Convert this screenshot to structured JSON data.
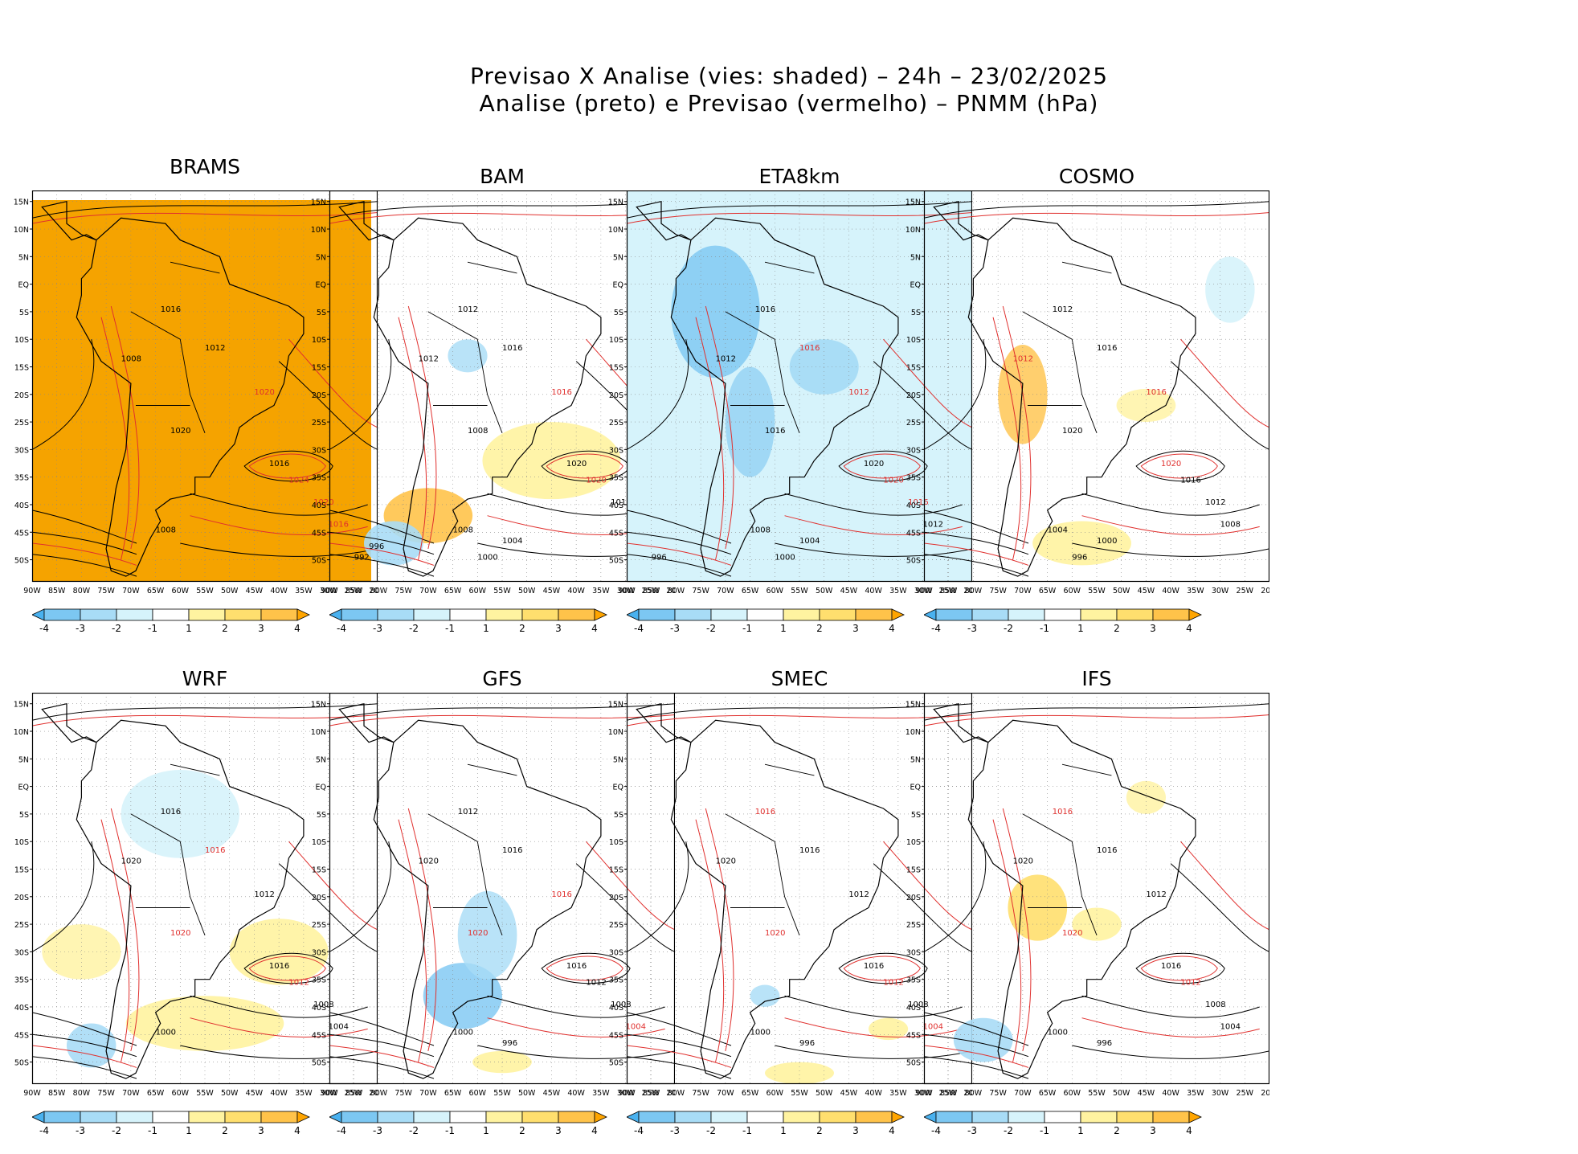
{
  "title_line1": "Previsao X Analise (vies: shaded) – 24h – 23/02/2025",
  "title_line2": "Analise (preto) e Previsao (vermelho) – PNMM (hPa)",
  "lat_labels": [
    "15N",
    "10N",
    "5N",
    "EQ",
    "5S",
    "10S",
    "15S",
    "20S",
    "25S",
    "30S",
    "35S",
    "40S",
    "45S",
    "50S"
  ],
  "lon_labels": [
    "90W",
    "85W",
    "80W",
    "75W",
    "70W",
    "65W",
    "60W",
    "55W",
    "50W",
    "45W",
    "40W",
    "35W",
    "30W",
    "25W",
    "20W"
  ],
  "colorbar": {
    "labels": [
      "-4",
      "-3",
      "-2",
      "-1",
      "1",
      "2",
      "3",
      "4"
    ],
    "colors": [
      "#49b1ef",
      "#7cc7f2",
      "#a8dcf6",
      "#d6f3fb",
      "#ffffff",
      "#fff3a0",
      "#ffdf6e",
      "#ffc34a",
      "#ffa500"
    ]
  },
  "contour_colors": {
    "analysis": "#000000",
    "forecast": "#e0302e"
  },
  "panels": [
    {
      "name": "BRAMS",
      "bias_fill": "#f5a300",
      "labels": [
        {
          "t": "1016",
          "c": "k"
        },
        {
          "t": "1012",
          "c": "k"
        },
        {
          "t": "1020",
          "c": "r"
        },
        {
          "t": "1008",
          "c": "k"
        },
        {
          "t": "1020",
          "c": "k"
        },
        {
          "t": "1016",
          "c": "k"
        },
        {
          "t": "1024",
          "c": "r"
        },
        {
          "t": "1020",
          "c": "r"
        },
        {
          "t": "1016",
          "c": "r"
        },
        {
          "t": "1008",
          "c": "k"
        }
      ]
    },
    {
      "name": "BAM",
      "bias_fill": "none",
      "labels": [
        {
          "t": "1012",
          "c": "k"
        },
        {
          "t": "1016",
          "c": "k"
        },
        {
          "t": "1016",
          "c": "r"
        },
        {
          "t": "1012",
          "c": "k"
        },
        {
          "t": "1008",
          "c": "k"
        },
        {
          "t": "1020",
          "c": "k"
        },
        {
          "t": "1020",
          "c": "r"
        },
        {
          "t": "1016",
          "c": "k"
        },
        {
          "t": "1012",
          "c": "r"
        },
        {
          "t": "1008",
          "c": "k"
        },
        {
          "t": "1004",
          "c": "k"
        },
        {
          "t": "1000",
          "c": "k"
        },
        {
          "t": "992",
          "c": "k"
        },
        {
          "t": "996",
          "c": "k"
        }
      ]
    },
    {
      "name": "ETA8km",
      "bias_fill": "#d6f3fb",
      "labels": [
        {
          "t": "1016",
          "c": "k"
        },
        {
          "t": "1016",
          "c": "r"
        },
        {
          "t": "1012",
          "c": "r"
        },
        {
          "t": "1012",
          "c": "k"
        },
        {
          "t": "1016",
          "c": "k"
        },
        {
          "t": "1020",
          "c": "k"
        },
        {
          "t": "1020",
          "c": "r"
        },
        {
          "t": "1016",
          "c": "r"
        },
        {
          "t": "1012",
          "c": "k"
        },
        {
          "t": "1008",
          "c": "k"
        },
        {
          "t": "1004",
          "c": "k"
        },
        {
          "t": "1000",
          "c": "k"
        },
        {
          "t": "996",
          "c": "k"
        }
      ]
    },
    {
      "name": "COSMO",
      "bias_fill": "none",
      "labels": [
        {
          "t": "1012",
          "c": "k"
        },
        {
          "t": "1016",
          "c": "k"
        },
        {
          "t": "1016",
          "c": "r"
        },
        {
          "t": "1012",
          "c": "r"
        },
        {
          "t": "1020",
          "c": "k"
        },
        {
          "t": "1020",
          "c": "r"
        },
        {
          "t": "1016",
          "c": "k"
        },
        {
          "t": "1012",
          "c": "k"
        },
        {
          "t": "1008",
          "c": "k"
        },
        {
          "t": "1004",
          "c": "k"
        },
        {
          "t": "1000",
          "c": "k"
        },
        {
          "t": "996",
          "c": "k"
        }
      ]
    },
    {
      "name": "WRF",
      "bias_fill": "none",
      "labels": [
        {
          "t": "1016",
          "c": "k"
        },
        {
          "t": "1016",
          "c": "r"
        },
        {
          "t": "1012",
          "c": "k"
        },
        {
          "t": "1020",
          "c": "k"
        },
        {
          "t": "1020",
          "c": "r"
        },
        {
          "t": "1016",
          "c": "k"
        },
        {
          "t": "1012",
          "c": "r"
        },
        {
          "t": "1008",
          "c": "k"
        },
        {
          "t": "1004",
          "c": "k"
        },
        {
          "t": "1000",
          "c": "k"
        }
      ]
    },
    {
      "name": "GFS",
      "bias_fill": "none",
      "labels": [
        {
          "t": "1012",
          "c": "k"
        },
        {
          "t": "1016",
          "c": "k"
        },
        {
          "t": "1016",
          "c": "r"
        },
        {
          "t": "1020",
          "c": "k"
        },
        {
          "t": "1020",
          "c": "r"
        },
        {
          "t": "1016",
          "c": "k"
        },
        {
          "t": "1012",
          "c": "k"
        },
        {
          "t": "1008",
          "c": "k"
        },
        {
          "t": "1004",
          "c": "r"
        },
        {
          "t": "1000",
          "c": "k"
        },
        {
          "t": "996",
          "c": "k"
        }
      ]
    },
    {
      "name": "SMEC",
      "bias_fill": "none",
      "labels": [
        {
          "t": "1016",
          "c": "r"
        },
        {
          "t": "1016",
          "c": "k"
        },
        {
          "t": "1012",
          "c": "k"
        },
        {
          "t": "1020",
          "c": "k"
        },
        {
          "t": "1020",
          "c": "r"
        },
        {
          "t": "1016",
          "c": "k"
        },
        {
          "t": "1012",
          "c": "r"
        },
        {
          "t": "1008",
          "c": "k"
        },
        {
          "t": "1004",
          "c": "r"
        },
        {
          "t": "1000",
          "c": "k"
        },
        {
          "t": "996",
          "c": "k"
        }
      ]
    },
    {
      "name": "IFS",
      "bias_fill": "none",
      "labels": [
        {
          "t": "1016",
          "c": "r"
        },
        {
          "t": "1016",
          "c": "k"
        },
        {
          "t": "1012",
          "c": "k"
        },
        {
          "t": "1020",
          "c": "k"
        },
        {
          "t": "1020",
          "c": "r"
        },
        {
          "t": "1016",
          "c": "k"
        },
        {
          "t": "1012",
          "c": "r"
        },
        {
          "t": "1008",
          "c": "k"
        },
        {
          "t": "1004",
          "c": "k"
        },
        {
          "t": "1000",
          "c": "k"
        },
        {
          "t": "996",
          "c": "k"
        }
      ]
    }
  ]
}
